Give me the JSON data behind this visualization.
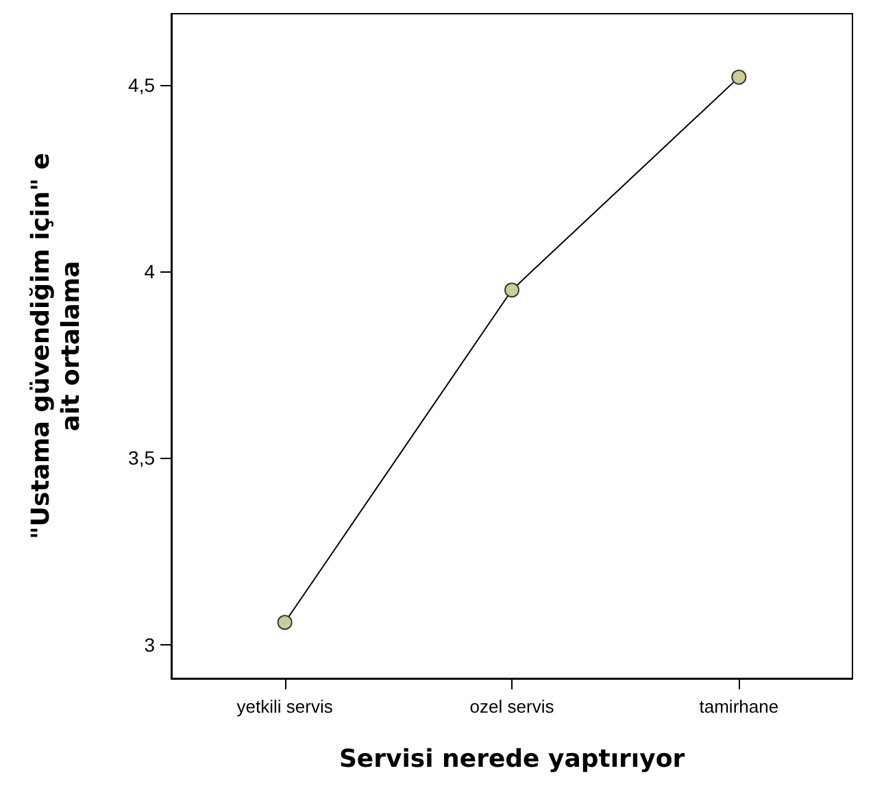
{
  "chart_data": {
    "type": "line",
    "xlabel": "Servisi nerede yaptırıyor",
    "ylabel": "\"Ustama güvendiğim için\" e\nait ortalama",
    "categories": [
      "yetkili servis",
      "ozel servis",
      "tamirhane"
    ],
    "series": [
      {
        "color": "#000000",
        "values": [
          3.06,
          3.95,
          4.52
        ]
      }
    ],
    "ylim": [
      2.91,
      4.69
    ],
    "yticks": [
      {
        "value": 3,
        "label": "3"
      },
      {
        "value": 3.5,
        "label": "3,5"
      },
      {
        "value": 4,
        "label": "4"
      },
      {
        "value": 4.5,
        "label": "4,5"
      }
    ],
    "marker": "circle",
    "line_style": "solid",
    "grid": false
  }
}
